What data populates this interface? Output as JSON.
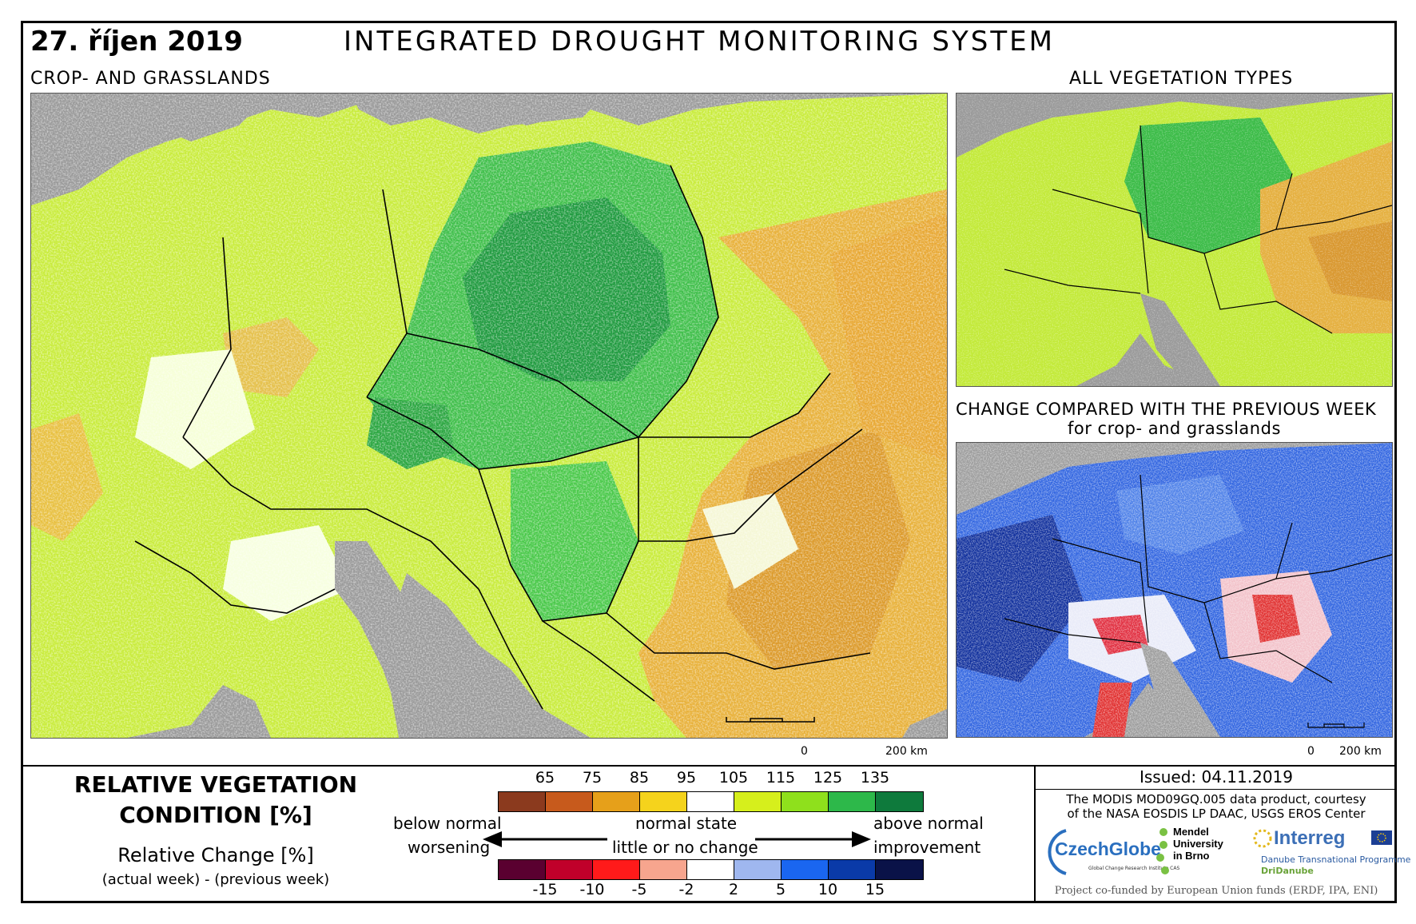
{
  "header": {
    "date": "27. říjen 2019",
    "title": "INTEGRATED DROUGHT MONITORING SYSTEM"
  },
  "main_map": {
    "label": "CROP- AND GRASSLANDS",
    "scale_zero": "0",
    "scale_label": "200 km"
  },
  "vegetation_map": {
    "label": "ALL VEGETATION TYPES"
  },
  "change_map": {
    "label_line1": "CHANGE COMPARED WITH THE PREVIOUS WEEK",
    "label_line2": "for crop- and grasslands",
    "scale_zero": "0",
    "scale_label": "200 km"
  },
  "legend": {
    "title_line1": "RELATIVE VEGETATION",
    "title_line2": "CONDITION [%]",
    "relative_change": "Relative Change [%]",
    "relative_change_sub": "(actual week) - (previous week)",
    "condition_ticks": [
      "65",
      "75",
      "85",
      "95",
      "105",
      "115",
      "125",
      "135"
    ],
    "condition_colors": [
      "#8b3a1e",
      "#c75a1c",
      "#e6a01a",
      "#f5d31c",
      "#ffffff",
      "#d6ef1c",
      "#8fe01c",
      "#2db84a",
      "#0e7a3c"
    ],
    "change_ticks": [
      "-15",
      "-10",
      "-5",
      "-2",
      "2",
      "5",
      "10",
      "15"
    ],
    "change_colors": [
      "#5a0030",
      "#c0002a",
      "#ff1a1a",
      "#f7a58e",
      "#ffffff",
      "#9fb7ef",
      "#1a66f0",
      "#0a3aa8",
      "#0a1248"
    ],
    "below_normal": "below normal",
    "worsening": "worsening",
    "normal_state": "normal state",
    "little_change": "little or no change",
    "above_normal": "above normal",
    "improvement": "improvement"
  },
  "info": {
    "issued": "Issued: 04.11.2019",
    "credit_line1": "The MODIS MOD09GQ.005 data product, courtesy",
    "credit_line2": "of the NASA EOSDIS LP DAAC, USGS EROS Center",
    "logo_czechglobe": "CzechGlobe",
    "logo_czechglobe_sub": "Global Change Research Institute CAS",
    "logo_mendel_1": "Mendel",
    "logo_mendel_2": "University",
    "logo_mendel_3": "in Brno",
    "logo_interreg": "Interreg",
    "logo_interreg_sub": "Danube Transnational Programme",
    "logo_dridanube": "DriDanube",
    "cofunded": "Project co-funded by European Union funds (ERDF, IPA, ENI)"
  }
}
